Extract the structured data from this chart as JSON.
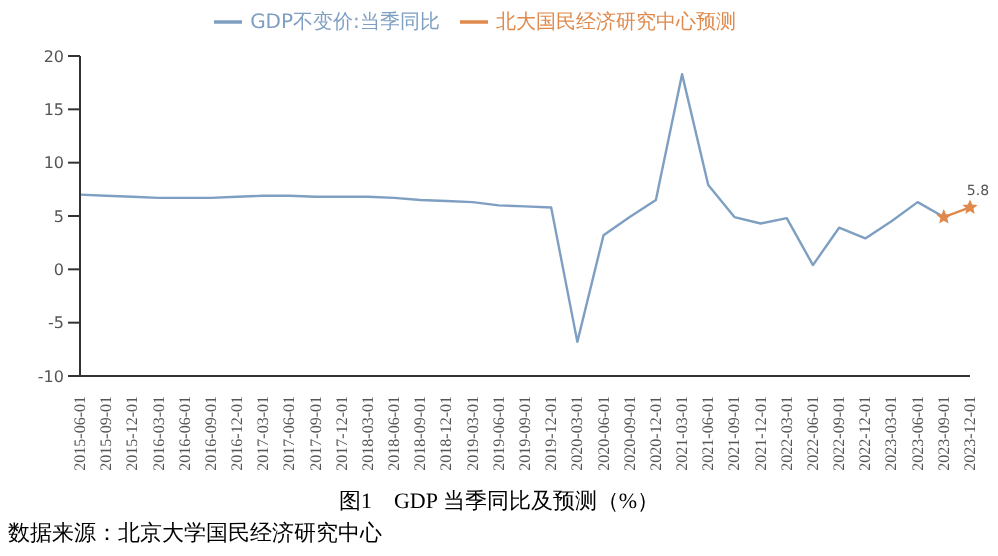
{
  "chart_data": {
    "type": "line",
    "categories": [
      "2015-06-01",
      "2015-09-01",
      "2015-12-01",
      "2016-03-01",
      "2016-06-01",
      "2016-09-01",
      "2016-12-01",
      "2017-03-01",
      "2017-06-01",
      "2017-09-01",
      "2017-12-01",
      "2018-03-01",
      "2018-06-01",
      "2018-09-01",
      "2018-12-01",
      "2019-03-01",
      "2019-06-01",
      "2019-09-01",
      "2019-12-01",
      "2020-03-01",
      "2020-06-01",
      "2020-09-01",
      "2020-12-01",
      "2021-03-01",
      "2021-06-01",
      "2021-09-01",
      "2021-12-01",
      "2022-03-01",
      "2022-06-01",
      "2022-09-01",
      "2022-12-01",
      "2023-03-01",
      "2023-06-01",
      "2023-09-01",
      "2023-12-01"
    ],
    "series": [
      {
        "name": "GDP不变价:当季同比",
        "color": "#7f9fc2",
        "marker": "none",
        "values": [
          7.0,
          6.9,
          6.8,
          6.7,
          6.7,
          6.7,
          6.8,
          6.9,
          6.9,
          6.8,
          6.8,
          6.8,
          6.7,
          6.5,
          6.4,
          6.3,
          6.0,
          5.9,
          5.8,
          -6.8,
          3.2,
          4.9,
          6.5,
          18.3,
          7.9,
          4.9,
          4.3,
          4.8,
          0.4,
          3.9,
          2.9,
          4.5,
          6.3,
          4.9,
          null
        ]
      },
      {
        "name": "北大国民经济研究中心预测",
        "color": "#e0894c",
        "marker": "star",
        "values": [
          null,
          null,
          null,
          null,
          null,
          null,
          null,
          null,
          null,
          null,
          null,
          null,
          null,
          null,
          null,
          null,
          null,
          null,
          null,
          null,
          null,
          null,
          null,
          null,
          null,
          null,
          null,
          null,
          null,
          null,
          null,
          null,
          null,
          4.9,
          5.8
        ],
        "value_labels": [
          null,
          null,
          null,
          null,
          null,
          null,
          null,
          null,
          null,
          null,
          null,
          null,
          null,
          null,
          null,
          null,
          null,
          null,
          null,
          null,
          null,
          null,
          null,
          null,
          null,
          null,
          null,
          null,
          null,
          null,
          null,
          null,
          null,
          null,
          "5.8"
        ]
      }
    ],
    "ylim": [
      -10,
      20
    ],
    "yticks": [
      -10,
      -5,
      0,
      5,
      10,
      15,
      20
    ],
    "grid": false,
    "legend": "top",
    "annotations": [
      "图1　GDP 当季同比及预测（%）",
      "数据来源：北京大学国民经济研究中心"
    ]
  }
}
